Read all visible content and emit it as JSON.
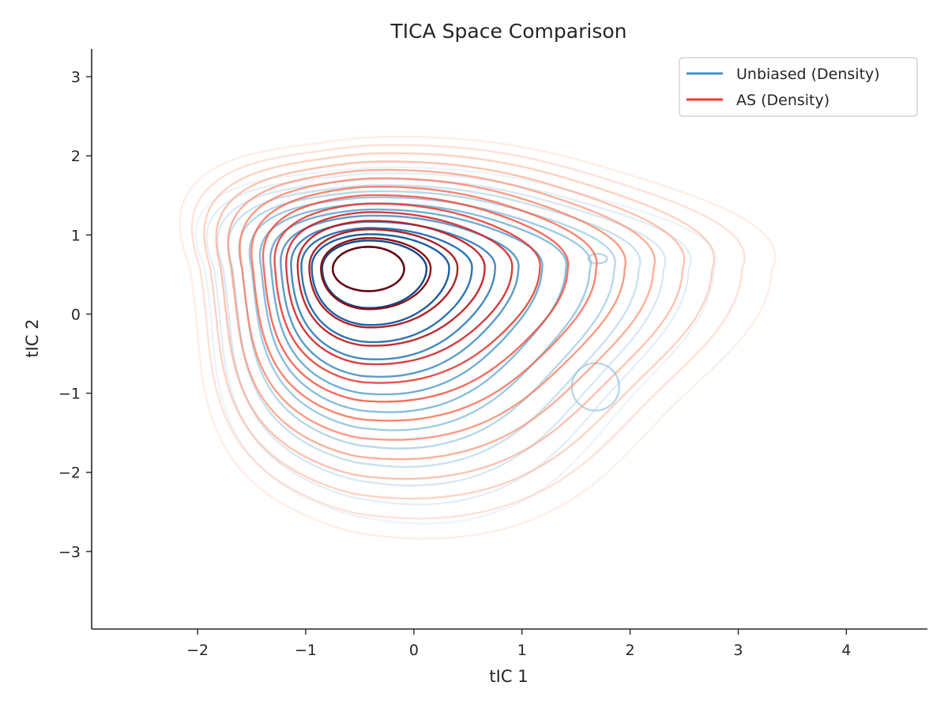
{
  "chart_data": {
    "type": "contour",
    "title": "TICA Space Comparison",
    "xlabel": "tIC 1",
    "ylabel": "tIC 2",
    "xlim": [
      -2.98,
      4.75
    ],
    "ylim": [
      -3.98,
      3.35
    ],
    "xticks": [
      -2,
      -1,
      0,
      1,
      2,
      3,
      4
    ],
    "yticks": [
      -3,
      -2,
      -1,
      0,
      1,
      2,
      3
    ],
    "xtick_labels": [
      "−2",
      "−1",
      "0",
      "1",
      "2",
      "3",
      "4"
    ],
    "ytick_labels": [
      "−3",
      "−2",
      "−1",
      "0",
      "1",
      "2",
      "3"
    ],
    "grid": false,
    "legend_position": "top-right",
    "series": [
      {
        "name": "Unbiased (Density)",
        "color": "#4292c6",
        "cmap": "Blues",
        "peak": [
          -0.42,
          0.57
        ],
        "secondary_peaks": [
          [
            1.7,
            0.7
          ],
          [
            1.68,
            -0.92
          ]
        ],
        "level_extent": {
          "x": [
            -2.05,
            2.6
          ],
          "y": [
            -2.6,
            1.9
          ]
        },
        "levels": 14
      },
      {
        "name": "AS (Density)",
        "color": "#ef3b2c",
        "cmap": "Reds",
        "peak": [
          -0.42,
          0.57
        ],
        "level_extent": {
          "x": [
            -2.2,
            3.1
          ],
          "y": [
            -2.72,
            2.3
          ]
        },
        "levels": 14
      }
    ]
  }
}
